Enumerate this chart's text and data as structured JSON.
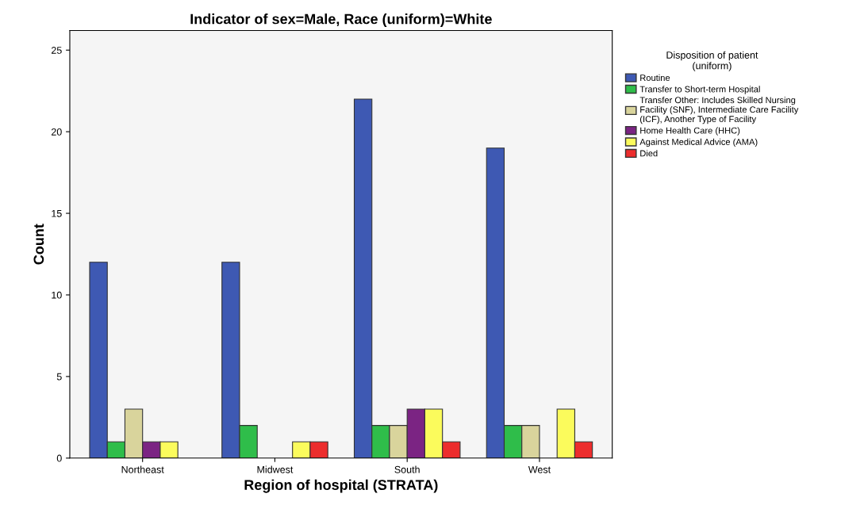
{
  "chart_data": {
    "type": "bar",
    "title": "Indicator of sex=Male, Race (uniform)=White",
    "xlabel": "Region of hospital (STRATA)",
    "ylabel": "Count",
    "legend_title": "Disposition of patient (uniform)",
    "categories": [
      "Northeast",
      "Midwest",
      "South",
      "West"
    ],
    "series": [
      {
        "name": "Routine",
        "color": "#3e59b3",
        "values": [
          12,
          12,
          22,
          19
        ]
      },
      {
        "name": "Transfer to Short-term Hospital",
        "color": "#2fbd4a",
        "values": [
          1,
          2,
          2,
          2
        ]
      },
      {
        "name": "Transfer Other: Includes Skilled Nursing Facility (SNF), Intermediate Care Facility (ICF), Another Type of Facility",
        "color": "#d9d49c",
        "values": [
          3,
          null,
          2,
          2
        ]
      },
      {
        "name": "Home Health Care (HHC)",
        "color": "#7b2483",
        "values": [
          1,
          null,
          3,
          null
        ]
      },
      {
        "name": "Against Medical Advice (AMA)",
        "color": "#fbfb5c",
        "values": [
          1,
          1,
          3,
          3
        ]
      },
      {
        "name": "Died",
        "color": "#ec2d2d",
        "values": [
          null,
          1,
          1,
          1
        ]
      }
    ],
    "ylim": [
      0,
      26.2
    ],
    "yticks": [
      0,
      5,
      10,
      15,
      20,
      25
    ],
    "grid": false,
    "legend": "right"
  }
}
